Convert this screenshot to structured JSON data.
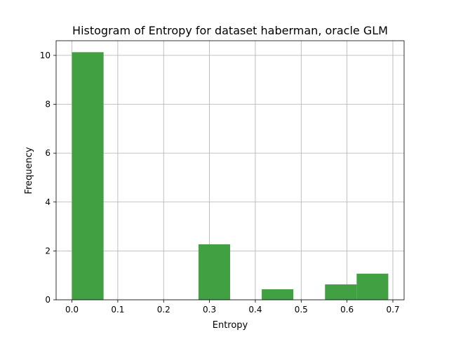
{
  "chart_data": {
    "type": "bar",
    "title": "Histogram of Entropy for dataset haberman, oracle GLM",
    "xlabel": "Entropy",
    "ylabel": "Frequency",
    "xlim": [
      -0.0345,
      0.7245
    ],
    "ylim": [
      0,
      10.6
    ],
    "xticks": [
      0.0,
      0.1,
      0.2,
      0.3,
      0.4,
      0.5,
      0.6,
      0.7
    ],
    "xtick_labels": [
      "0.0",
      "0.1",
      "0.2",
      "0.3",
      "0.4",
      "0.5",
      "0.6",
      "0.7"
    ],
    "yticks": [
      0,
      2,
      4,
      6,
      8,
      10
    ],
    "ytick_labels": [
      "0",
      "2",
      "4",
      "6",
      "8",
      "10"
    ],
    "grid": true,
    "bar_color": "#41a041",
    "bins": [
      {
        "x0": 0.0,
        "x1": 0.069,
        "value": 10.13
      },
      {
        "x0": 0.069,
        "x1": 0.138,
        "value": 0
      },
      {
        "x0": 0.138,
        "x1": 0.207,
        "value": 0
      },
      {
        "x0": 0.207,
        "x1": 0.276,
        "value": 0
      },
      {
        "x0": 0.276,
        "x1": 0.345,
        "value": 2.27
      },
      {
        "x0": 0.345,
        "x1": 0.414,
        "value": 0
      },
      {
        "x0": 0.414,
        "x1": 0.483,
        "value": 0.43
      },
      {
        "x0": 0.483,
        "x1": 0.552,
        "value": 0
      },
      {
        "x0": 0.552,
        "x1": 0.621,
        "value": 0.63
      },
      {
        "x0": 0.621,
        "x1": 0.69,
        "value": 1.07
      }
    ]
  }
}
